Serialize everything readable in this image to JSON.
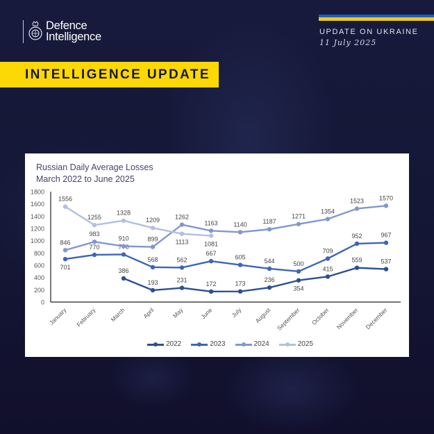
{
  "header": {
    "org_name_line1": "Defence",
    "org_name_line2": "Intelligence",
    "update_label": "UPDATE ON UKRAINE",
    "date": "11 July 2025",
    "banner": "INTELLIGENCE UPDATE",
    "flag_colors": {
      "blue": "#1f5fb8",
      "yellow": "#f2c81a"
    },
    "banner_color": "#fdd807"
  },
  "chart_data": {
    "type": "line",
    "title": "Russian Daily Average Losses",
    "subtitle": "March 2022 to June 2025",
    "xlabel": "",
    "ylabel": "",
    "ylim": [
      0,
      1800
    ],
    "yticks": [
      0,
      200,
      400,
      600,
      800,
      1000,
      1200,
      1400,
      1600,
      1800
    ],
    "grid": false,
    "legend_position": "bottom",
    "categories": [
      "January",
      "February",
      "March",
      "April",
      "May",
      "June",
      "July",
      "August",
      "September",
      "October",
      "November",
      "December"
    ],
    "series": [
      {
        "name": "2022",
        "color": "#2c4f93",
        "values": [
          null,
          null,
          386,
          193,
          231,
          172,
          173,
          236,
          354,
          415,
          559,
          537
        ]
      },
      {
        "name": "2023",
        "color": "#3d65b8",
        "values": [
          701,
          770,
          776,
          568,
          562,
          667,
          605,
          544,
          500,
          709,
          952,
          967
        ]
      },
      {
        "name": "2024",
        "color": "#8197cf",
        "values": [
          846,
          983,
          910,
          899,
          1262,
          1163,
          1140,
          1187,
          1271,
          1354,
          1523,
          1570
        ]
      },
      {
        "name": "2025",
        "color": "#b3bfe3",
        "values": [
          1556,
          1255,
          1328,
          1209,
          1113,
          1081,
          null,
          null,
          null,
          null,
          null,
          null
        ]
      }
    ],
    "label_offsets": {
      "2022": [
        "",
        "",
        "above",
        "above",
        "above",
        "above",
        "above",
        "above",
        "below",
        "above",
        "above",
        "above"
      ],
      "2023": [
        "below",
        "above",
        "above",
        "above",
        "above",
        "above",
        "above",
        "above",
        "above",
        "above",
        "above",
        "above"
      ],
      "2024": [
        "above",
        "above",
        "above",
        "above",
        "above",
        "above",
        "above",
        "above",
        "above",
        "above",
        "above",
        "above"
      ],
      "2025": [
        "above",
        "above",
        "above",
        "above",
        "below",
        "below",
        "",
        "",
        "",
        "",
        "",
        ""
      ]
    }
  }
}
